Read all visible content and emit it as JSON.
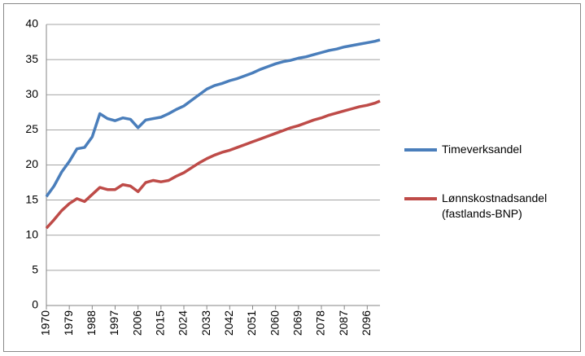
{
  "chart_data": {
    "type": "line",
    "x": [
      1970,
      1973,
      1976,
      1979,
      1982,
      1985,
      1988,
      1991,
      1994,
      1997,
      2000,
      2003,
      2006,
      2009,
      2012,
      2015,
      2018,
      2021,
      2024,
      2027,
      2030,
      2033,
      2036,
      2039,
      2042,
      2045,
      2048,
      2051,
      2054,
      2057,
      2060,
      2063,
      2066,
      2069,
      2072,
      2075,
      2078,
      2081,
      2084,
      2087,
      2090,
      2093,
      2096,
      2099,
      2101
    ],
    "series": [
      {
        "name": "Timeverksandel",
        "color": "#4a7ebb",
        "values": [
          15.5,
          17,
          19,
          20.5,
          22.3,
          22.5,
          24,
          27.3,
          26.6,
          26.3,
          26.7,
          26.5,
          25.3,
          26.4,
          26.6,
          26.8,
          27.3,
          27.9,
          28.4,
          29.2,
          30,
          30.8,
          31.3,
          31.6,
          32,
          32.3,
          32.7,
          33.1,
          33.6,
          34,
          34.4,
          34.7,
          34.9,
          35.2,
          35.4,
          35.7,
          36,
          36.3,
          36.5,
          36.8,
          37,
          37.2,
          37.4,
          37.6,
          37.8
        ]
      },
      {
        "name": "Lønnskostnadsandel (fastlands-BNP)",
        "color": "#be4b48",
        "values": [
          11,
          12.2,
          13.5,
          14.5,
          15.2,
          14.8,
          15.8,
          16.8,
          16.5,
          16.5,
          17.2,
          17,
          16.2,
          17.5,
          17.8,
          17.6,
          17.8,
          18.4,
          18.9,
          19.6,
          20.3,
          20.9,
          21.4,
          21.8,
          22.1,
          22.5,
          22.9,
          23.3,
          23.7,
          24.1,
          24.5,
          24.9,
          25.3,
          25.6,
          26,
          26.4,
          26.7,
          27.1,
          27.4,
          27.7,
          28,
          28.3,
          28.5,
          28.8,
          29.1
        ]
      }
    ],
    "xlim": [
      1970,
      2101
    ],
    "xticks": [
      1970,
      1979,
      1988,
      1997,
      2006,
      2015,
      2024,
      2033,
      2042,
      2051,
      2060,
      2069,
      2078,
      2087,
      2096
    ],
    "ylim": [
      0,
      40
    ],
    "yticks": [
      0,
      5,
      10,
      15,
      20,
      25,
      30,
      35,
      40
    ],
    "grid": true,
    "legend": "right"
  }
}
